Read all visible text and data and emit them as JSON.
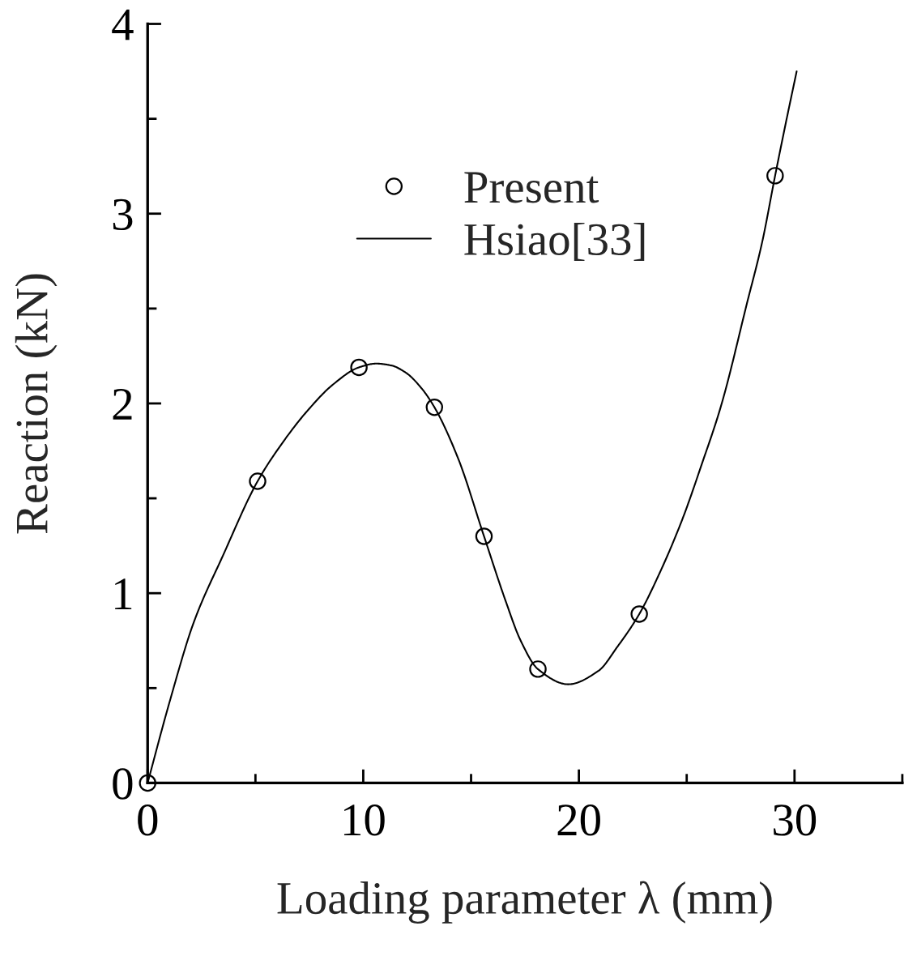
{
  "chart_data": {
    "type": "line",
    "xlabel": "Loading parameter λ (mm)",
    "ylabel": "Reaction (kN)",
    "xlim": [
      0,
      35
    ],
    "ylim": [
      0,
      4
    ],
    "xticks": [
      0,
      {
        "value": 5,
        "label": null
      },
      10,
      {
        "value": 15,
        "label": null
      },
      20,
      {
        "value": 25,
        "label": null
      },
      30,
      {
        "value": 35,
        "label": null
      }
    ],
    "yticks": [
      0,
      {
        "value": 0.5,
        "label": null
      },
      1,
      {
        "value": 1.5,
        "label": null
      },
      2,
      {
        "value": 2.5,
        "label": null
      },
      3,
      {
        "value": 3.5,
        "label": null
      },
      4
    ],
    "grid": false,
    "legend": "top",
    "series": [
      {
        "name": "Present",
        "type": "scatter",
        "marker": "circle",
        "color": "#000000",
        "x": [
          0,
          5.1,
          9.8,
          13.3,
          15.6,
          18.1,
          22.8,
          29.1
        ],
        "values": [
          0,
          1.59,
          2.19,
          1.98,
          1.3,
          0.6,
          0.89,
          3.2
        ]
      },
      {
        "name": "Hsiao[33]",
        "line_style": "solid",
        "color": "#000000",
        "x": [
          0,
          1,
          2.15,
          3.5,
          5.1,
          6.3,
          7.4,
          8.6,
          9.8,
          10.6,
          11.3,
          12.0,
          12.7,
          13.3,
          14.4,
          15.6,
          16.6,
          17.3,
          18.1,
          19.5,
          20.9,
          21.8,
          22.8,
          23.8,
          24.8,
          25.7,
          26.6,
          27.8,
          28.5,
          29.1,
          29.6,
          30.1
        ],
        "values": [
          0,
          0.42,
          0.85,
          1.2,
          1.59,
          1.8,
          1.96,
          2.1,
          2.19,
          2.21,
          2.2,
          2.16,
          2.08,
          1.98,
          1.71,
          1.3,
          0.96,
          0.75,
          0.6,
          0.52,
          0.59,
          0.72,
          0.89,
          1.12,
          1.39,
          1.68,
          1.99,
          2.53,
          2.85,
          3.2,
          3.48,
          3.75
        ]
      }
    ]
  }
}
